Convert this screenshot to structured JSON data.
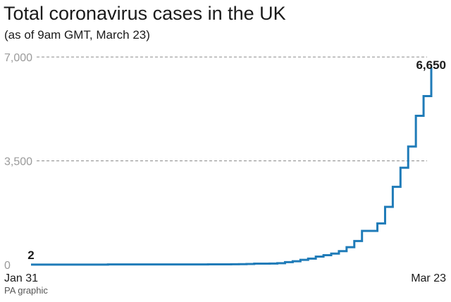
{
  "title": "Total coronavirus cases in the UK",
  "subtitle": "(as of 9am GMT, March 23)",
  "credit": "PA graphic",
  "chart_data": {
    "type": "line",
    "step": true,
    "x": [
      "Jan 31",
      "Feb 1",
      "Feb 2",
      "Feb 3",
      "Feb 4",
      "Feb 5",
      "Feb 6",
      "Feb 7",
      "Feb 8",
      "Feb 9",
      "Feb 10",
      "Feb 11",
      "Feb 12",
      "Feb 13",
      "Feb 14",
      "Feb 15",
      "Feb 16",
      "Feb 17",
      "Feb 18",
      "Feb 19",
      "Feb 20",
      "Feb 21",
      "Feb 22",
      "Feb 23",
      "Feb 24",
      "Feb 25",
      "Feb 26",
      "Feb 27",
      "Feb 28",
      "Feb 29",
      "Mar 1",
      "Mar 2",
      "Mar 3",
      "Mar 4",
      "Mar 5",
      "Mar 6",
      "Mar 7",
      "Mar 8",
      "Mar 9",
      "Mar 10",
      "Mar 11",
      "Mar 12",
      "Mar 13",
      "Mar 14",
      "Mar 15",
      "Mar 16",
      "Mar 17",
      "Mar 18",
      "Mar 19",
      "Mar 20",
      "Mar 21",
      "Mar 22",
      "Mar 23"
    ],
    "values": [
      2,
      2,
      2,
      2,
      2,
      2,
      3,
      3,
      3,
      3,
      8,
      8,
      9,
      9,
      9,
      9,
      9,
      9,
      9,
      9,
      9,
      9,
      9,
      13,
      13,
      13,
      15,
      19,
      23,
      35,
      36,
      40,
      51,
      85,
      115,
      163,
      206,
      273,
      321,
      373,
      456,
      590,
      798,
      1140,
      1140,
      1391,
      1950,
      2626,
      3269,
      3983,
      5018,
      5683,
      6650
    ],
    "x_tick_labels": [
      "Jan 31",
      "Mar 23"
    ],
    "y_ticks": [
      0,
      3500,
      7000
    ],
    "y_tick_labels": [
      "0",
      "3,500",
      "7,000"
    ],
    "ylim": [
      0,
      7000
    ],
    "grid": "dashed horizontal at ticks",
    "line_color": "#1f7bb8",
    "data_labels": [
      {
        "x": "Jan 31",
        "value": 2,
        "text": "2"
      },
      {
        "x": "Mar 23",
        "value": 6650,
        "text": "6,650"
      }
    ],
    "title": "Total coronavirus cases in the UK",
    "xlabel": "",
    "ylabel": ""
  }
}
